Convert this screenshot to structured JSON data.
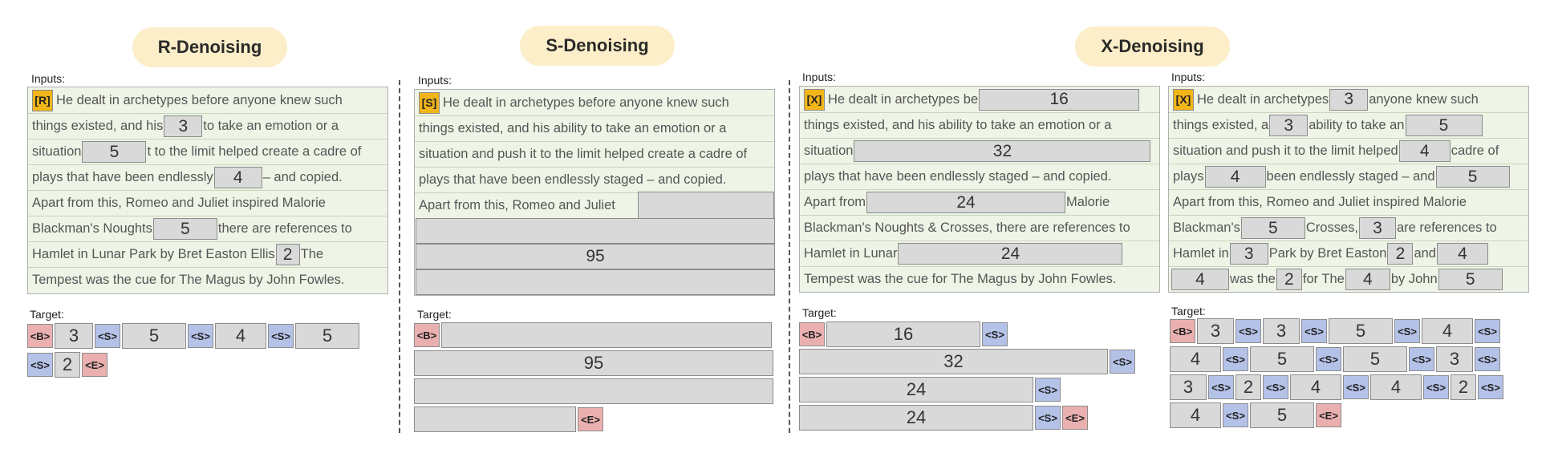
{
  "modes": {
    "r": {
      "title": "R-Denoising",
      "prefix": "[R]"
    },
    "s": {
      "title": "S-Denoising",
      "prefix": "[S]"
    },
    "x": {
      "title": "X-Denoising",
      "prefix": "[X]"
    }
  },
  "labels": {
    "inputs": "Inputs:",
    "target": "Target:"
  },
  "tokens": {
    "begin": "<B>",
    "sentinel": "<S>",
    "end": "<E>"
  },
  "r_panel": {
    "lines": [
      [
        "He dealt in archetypes before anyone knew such"
      ],
      [
        "things existed, and his ",
        "3",
        " to take an emotion or a"
      ],
      [
        "situation ",
        "5",
        "t to the limit helped create a cadre of"
      ],
      [
        "plays that have been endlessly ",
        "4",
        " – and copied."
      ],
      [
        "Apart from  this, Romeo and Juliet inspired Malorie"
      ],
      [
        "Blackman's Noughts ",
        "5",
        " there are references to"
      ],
      [
        "Hamlet in Lunar Park by Bret Easton Ellis ",
        "2",
        " The"
      ],
      [
        "Tempest was the cue for The Magus by John Fowles."
      ]
    ],
    "target": [
      "3",
      "5",
      "4",
      "5",
      "2"
    ]
  },
  "s_panel": {
    "lines": [
      "He dealt in archetypes before anyone knew such",
      "things existed, and his ability to take an emotion or a",
      "situation and push it to the limit helped create a cadre of",
      "plays that have been endlessly staged – and copied.",
      "Apart from  this, Romeo and Juliet"
    ],
    "mask": "95",
    "target": "95"
  },
  "x1_panel": {
    "lines": [
      [
        "He dealt in archetypes be",
        "16"
      ],
      [
        "things existed, and his ability to take an emotion or a"
      ],
      [
        "situation",
        "32"
      ],
      [
        "plays that have been endlessly staged – and copied."
      ],
      [
        "Apart from",
        "24",
        "Malorie"
      ],
      [
        "Blackman's Noughts & Crosses, there are references to"
      ],
      [
        "Hamlet in Lunar ",
        "24"
      ],
      [
        "Tempest was the cue for The Magus by John Fowles."
      ]
    ],
    "target": [
      "16",
      "32",
      "24",
      "24"
    ]
  },
  "x2_panel": {
    "lines": [
      [
        "He dealt in archetypes",
        "3",
        "anyone knew such"
      ],
      [
        "things existed, a",
        "3",
        "ability to take an",
        "5"
      ],
      [
        "situation and push it to the limit helped",
        "4",
        "cadre of"
      ],
      [
        "plays",
        "4",
        "been endlessly staged – and",
        "5"
      ],
      [
        "Apart from  this, Romeo and Juliet inspired Malorie"
      ],
      [
        "Blackman's",
        "5",
        "Crosses,",
        "3",
        "are references to"
      ],
      [
        "Hamlet in",
        "3",
        "Park by Bret Easton",
        "2",
        "and",
        "4"
      ],
      [
        "4",
        "was the",
        "2",
        "for The",
        "4",
        "by John",
        "5"
      ]
    ],
    "target": [
      "3",
      "3",
      "5",
      "4",
      "4",
      "5",
      "5",
      "3",
      "3",
      "2",
      "4",
      "4",
      "2",
      "4",
      "5"
    ]
  }
}
